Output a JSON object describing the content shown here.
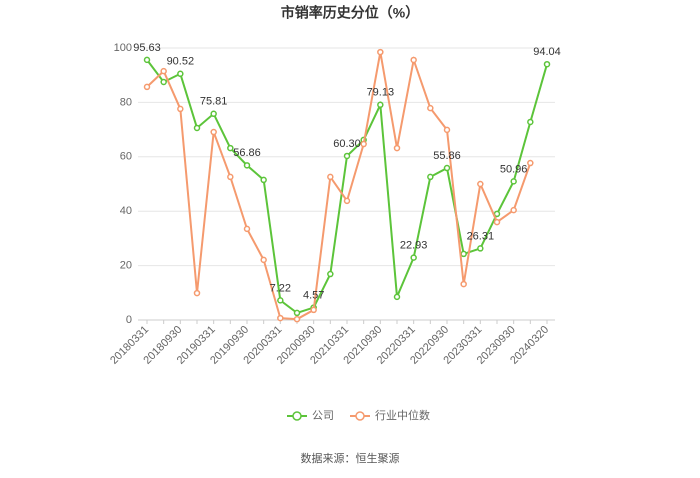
{
  "chart_data": {
    "type": "line",
    "title": "市销率历史分位（%）",
    "categories": [
      "20180331",
      null,
      "20180930",
      null,
      "20190331",
      null,
      "20190930",
      null,
      "20200331",
      null,
      "20200930",
      null,
      "20210331",
      null,
      "20210930",
      null,
      "20220331",
      null,
      "20220930",
      null,
      "20230331",
      null,
      "20230930",
      null,
      "20240320"
    ],
    "series": [
      {
        "name": "公司",
        "color": "#5cc43a",
        "values": [
          95.63,
          87.5,
          90.52,
          70.6,
          75.81,
          63.2,
          56.86,
          51.5,
          7.22,
          2.6,
          4.57,
          16.9,
          60.3,
          66.2,
          79.13,
          8.5,
          22.93,
          52.6,
          55.86,
          24.3,
          26.31,
          39,
          50.96,
          72.8,
          94.04
        ],
        "value_labels": [
          "95.63",
          null,
          "90.52",
          null,
          "75.81",
          null,
          "56.86",
          null,
          "7.22",
          null,
          "4.57",
          null,
          "60.30",
          null,
          "79.13",
          null,
          "22.93",
          null,
          "55.86",
          null,
          "26.31",
          null,
          "50.96",
          null,
          "94.04"
        ]
      },
      {
        "name": "行业中位数",
        "color": "#f59a6e",
        "values": [
          85.7,
          91.5,
          77.6,
          9.9,
          69.1,
          52.6,
          33.5,
          22.1,
          0.7,
          0.3,
          3.7,
          52.6,
          43.8,
          64.7,
          98.5,
          63.2,
          95.6,
          77.9,
          69.9,
          13.2,
          50,
          36,
          40.4,
          57.7,
          null
        ]
      }
    ],
    "ylim": [
      0,
      100
    ],
    "yticks": [
      0,
      20,
      40,
      60,
      80,
      100
    ],
    "grid": true,
    "legend": "bottom",
    "source": "数据来源：恒生聚源"
  }
}
